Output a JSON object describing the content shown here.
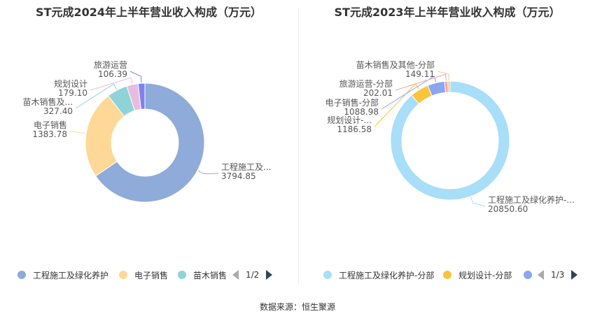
{
  "source_label": "数据来源：恒生聚源",
  "chart_data": [
    {
      "type": "pie",
      "donut": true,
      "title": "ST元成2024年上半年营业收入构成（万元）",
      "slices": [
        {
          "label": "工程施工及...",
          "legend": "工程施工及绿化养护",
          "value": 3794.85,
          "display": "3794.85",
          "color": "#8eabd9"
        },
        {
          "label": "电子销售",
          "legend": "电子销售",
          "value": 1383.78,
          "display": "1383.78",
          "color": "#fdd896"
        },
        {
          "label": "苗木销售及...",
          "legend": "苗木销售",
          "value": 327.4,
          "display": "327.40",
          "color": "#8ed4d6"
        },
        {
          "label": "规划设计",
          "legend": "",
          "value": 179.1,
          "display": "179.10",
          "color": "#e6bde1"
        },
        {
          "label": "旅游运营",
          "legend": "",
          "value": 106.39,
          "display": "106.39",
          "color": "#7f82ec"
        }
      ],
      "legend_page": "1/2"
    },
    {
      "type": "pie",
      "donut": true,
      "title": "ST元成2023年上半年营业收入构成（万元）",
      "slices": [
        {
          "label": "工程施工及绿化养护-...",
          "legend": "工程施工及绿化养护-分部",
          "value": 20850.6,
          "display": "20850.60",
          "color": "#a8def7"
        },
        {
          "label": "规划设计-...",
          "legend": "规划设计-分部",
          "value": 1186.58,
          "display": "1186.58",
          "color": "#fbc43c"
        },
        {
          "label": "电子销售-分部",
          "legend": "",
          "value": 1088.98,
          "display": "1088.98",
          "color": "#8aa6f0"
        },
        {
          "label": "旅游运营-分部",
          "legend": "",
          "value": 202.01,
          "display": "202.01",
          "color": "#f0a7a0"
        },
        {
          "label": "苗木销售及其他-分部",
          "legend": "",
          "value": 149.11,
          "display": "149.11",
          "color": "#f7c59a"
        }
      ],
      "legend_page": "1/3"
    }
  ]
}
